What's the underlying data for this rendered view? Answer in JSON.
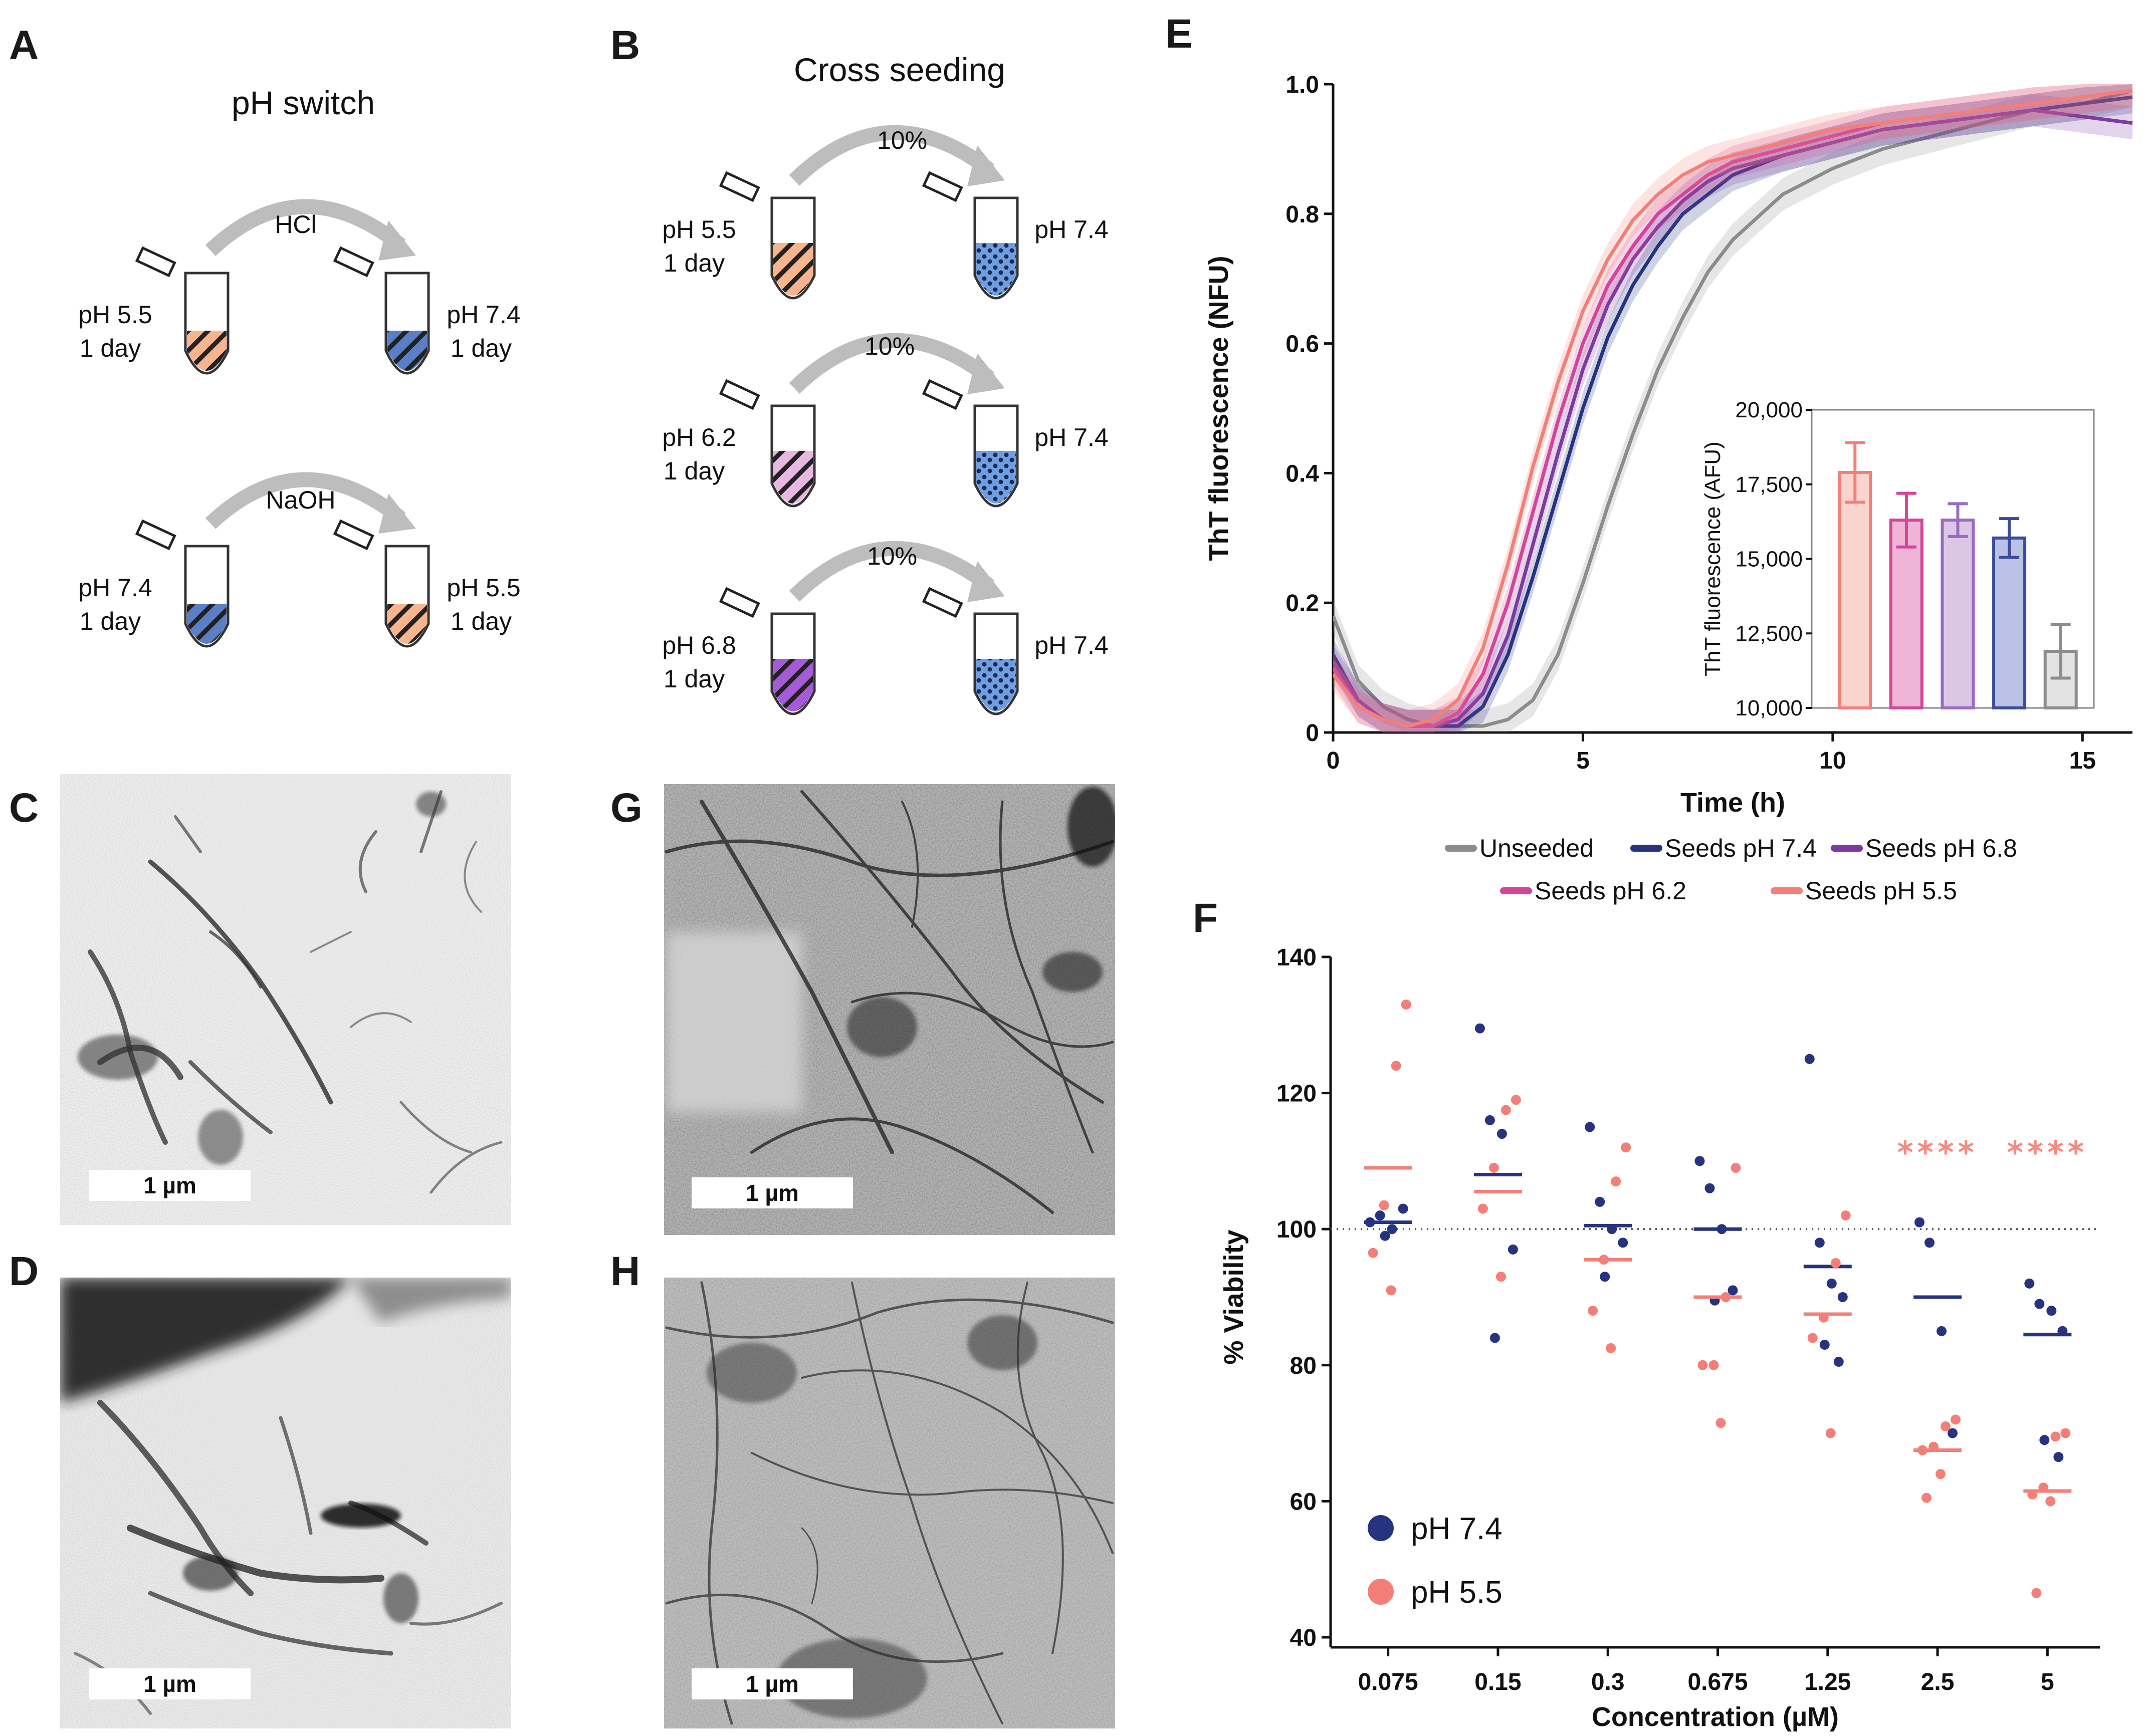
{
  "panels": {
    "a": {
      "letter": "A",
      "title": "pH switch",
      "rows": [
        {
          "reagent": "HCl",
          "left_ph": "pH 5.5",
          "left_time": "1 day",
          "right_ph": "pH 7.4",
          "right_time": "1 day",
          "left_color": "#f6b48f",
          "right_color": "#5b7fc4"
        },
        {
          "reagent": "NaOH",
          "left_ph": "pH 7.4",
          "left_time": "1 day",
          "right_ph": "pH 5.5",
          "right_time": "1 day",
          "left_color": "#5b7fc4",
          "right_color": "#f6b48f"
        }
      ]
    },
    "b": {
      "letter": "B",
      "title": "Cross seeding",
      "rows": [
        {
          "pct": "10%",
          "left_ph": "pH 5.5",
          "left_time": "1 day",
          "right_ph": "pH 7.4",
          "left_color": "#f6b48f"
        },
        {
          "pct": "10%",
          "left_ph": "pH 6.2",
          "left_time": "1 day",
          "right_ph": "pH 7.4",
          "left_color": "#e6b8e2"
        },
        {
          "pct": "10%",
          "left_ph": "pH 6.8",
          "left_time": "1 day",
          "right_ph": "pH 7.4",
          "left_color": "#a65bd6"
        }
      ],
      "seed_target_color": "#6f9fe0"
    },
    "c": {
      "letter": "C",
      "scale": "1 µm"
    },
    "d": {
      "letter": "D",
      "scale": "1 µm"
    },
    "g": {
      "letter": "G",
      "scale": "1 µm"
    },
    "h": {
      "letter": "H",
      "scale": "1 µm"
    },
    "e": {
      "letter": "E"
    },
    "f": {
      "letter": "F"
    }
  },
  "chart_data": [
    {
      "id": "E-main",
      "type": "line",
      "xlabel": "Time (h)",
      "ylabel": "ThT fluorescence (NFU)",
      "xlim": [
        0,
        16
      ],
      "ylim": [
        0,
        1.0
      ],
      "xticks": [
        0,
        5,
        10,
        15
      ],
      "yticks": [
        0,
        0.2,
        0.4,
        0.6,
        0.8,
        1.0
      ],
      "ytick_labels": [
        "0",
        "0.2",
        "0.4",
        "0.6",
        "0.8",
        "1.0"
      ],
      "series": [
        {
          "name": "Unseeded",
          "color": "#8c8c8c",
          "x": [
            0,
            0.5,
            1,
            1.5,
            2,
            2.5,
            3,
            3.5,
            4,
            4.5,
            5,
            5.5,
            6,
            6.5,
            7,
            7.5,
            8,
            9,
            10,
            11,
            12,
            13,
            14,
            15,
            16
          ],
          "y": [
            0.18,
            0.08,
            0.04,
            0.02,
            0.01,
            0.01,
            0.01,
            0.02,
            0.05,
            0.12,
            0.23,
            0.35,
            0.46,
            0.56,
            0.64,
            0.71,
            0.76,
            0.83,
            0.87,
            0.9,
            0.92,
            0.94,
            0.96,
            0.97,
            0.99
          ]
        },
        {
          "name": "Seeds pH 7.4",
          "color": "#26337f",
          "x": [
            0,
            0.5,
            1,
            1.5,
            2,
            2.5,
            3,
            3.5,
            4,
            4.5,
            5,
            5.5,
            6,
            6.5,
            7,
            7.5,
            8,
            9,
            10,
            11,
            12,
            13,
            14,
            15,
            16
          ],
          "y": [
            0.12,
            0.05,
            0.02,
            0.01,
            0.01,
            0.01,
            0.04,
            0.12,
            0.24,
            0.37,
            0.5,
            0.61,
            0.69,
            0.75,
            0.8,
            0.83,
            0.86,
            0.89,
            0.91,
            0.93,
            0.94,
            0.95,
            0.96,
            0.97,
            0.98
          ]
        },
        {
          "name": "Seeds pH 6.8",
          "color": "#7d3aa0",
          "x": [
            0,
            0.5,
            1,
            1.5,
            2,
            2.5,
            3,
            3.5,
            4,
            4.5,
            5,
            5.5,
            6,
            6.5,
            7,
            7.5,
            8,
            9,
            10,
            11,
            12,
            13,
            14,
            15,
            16
          ],
          "y": [
            0.11,
            0.05,
            0.02,
            0.01,
            0.01,
            0.02,
            0.06,
            0.15,
            0.29,
            0.43,
            0.56,
            0.66,
            0.73,
            0.78,
            0.82,
            0.85,
            0.87,
            0.89,
            0.91,
            0.93,
            0.94,
            0.95,
            0.96,
            0.95,
            0.94
          ]
        },
        {
          "name": "Seeds pH 6.2",
          "color": "#d3449b",
          "x": [
            0,
            0.5,
            1,
            1.5,
            2,
            2.5,
            3,
            3.5,
            4,
            4.5,
            5,
            5.5,
            6,
            6.5,
            7,
            7.5,
            8,
            9,
            10,
            11,
            12,
            13,
            14,
            15,
            16
          ],
          "y": [
            0.1,
            0.04,
            0.02,
            0.01,
            0.01,
            0.03,
            0.09,
            0.2,
            0.34,
            0.48,
            0.6,
            0.69,
            0.75,
            0.8,
            0.83,
            0.86,
            0.88,
            0.9,
            0.92,
            0.94,
            0.95,
            0.96,
            0.97,
            0.98,
            0.99
          ]
        },
        {
          "name": "Seeds pH 5.5",
          "color": "#f47f78",
          "x": [
            0,
            0.5,
            1,
            1.5,
            2,
            2.5,
            3,
            3.5,
            4,
            4.5,
            5,
            5.5,
            6,
            6.5,
            7,
            7.5,
            8,
            9,
            10,
            11,
            12,
            13,
            14,
            15,
            16
          ],
          "y": [
            0.09,
            0.04,
            0.02,
            0.01,
            0.02,
            0.05,
            0.13,
            0.26,
            0.41,
            0.54,
            0.65,
            0.73,
            0.79,
            0.83,
            0.86,
            0.88,
            0.89,
            0.91,
            0.93,
            0.94,
            0.95,
            0.96,
            0.97,
            0.98,
            0.99
          ]
        }
      ]
    },
    {
      "id": "E-inset",
      "type": "bar",
      "ylabel": "ThT fluorescence (AFU)",
      "ylim": [
        10000,
        20000
      ],
      "yticks": [
        10000,
        12500,
        15000,
        17500,
        20000
      ],
      "ytick_labels": [
        "10,000",
        "12,500",
        "15,000",
        "17,500",
        "20,000"
      ],
      "categories": [
        "Seeds pH 5.5",
        "Seeds pH 6.2",
        "Seeds pH 6.8",
        "Seeds pH 7.4",
        "Unseeded"
      ],
      "values": [
        17900,
        16300,
        16300,
        15700,
        11900
      ],
      "errors": [
        1000,
        900,
        550,
        650,
        900
      ],
      "colors": [
        "#f47f78",
        "#d3449b",
        "#9b6bbf",
        "#3b4a9a",
        "#8c8c8c"
      ],
      "fills": [
        "#fbd4cf",
        "#efb5d6",
        "#dcc6e6",
        "#bac3e6",
        "#e3e3e3"
      ]
    },
    {
      "id": "E-legend",
      "type": "legend",
      "entries": [
        {
          "label": "Unseeded",
          "color": "#8c8c8c"
        },
        {
          "label": "Seeds pH 7.4",
          "color": "#26337f"
        },
        {
          "label": "Seeds pH 6.8",
          "color": "#7d3aa0"
        },
        {
          "label": "Seeds pH 6.2",
          "color": "#d3449b"
        },
        {
          "label": "Seeds pH 5.5",
          "color": "#f47f78"
        }
      ]
    },
    {
      "id": "F",
      "type": "scatter",
      "xlabel": "Concentration (µM)",
      "ylabel": "% Viability",
      "ylim": [
        40,
        140
      ],
      "yticks": [
        40,
        60,
        80,
        100,
        120,
        140
      ],
      "reference_line": 100,
      "categories": [
        "0.075",
        "0.15",
        "0.3",
        "0.675",
        "1.25",
        "2.5",
        "5"
      ],
      "series": [
        {
          "name": "pH 7.4",
          "color": "#26337f",
          "points": [
            [
              101,
              102,
              100,
              103,
              99
            ],
            [
              129.5,
              116,
              114,
              97,
              84
            ],
            [
              115,
              104,
              100,
              98,
              93
            ],
            [
              110,
              106,
              100,
              91,
              89.5
            ],
            [
              125,
              98,
              92,
              90,
              83,
              80.5
            ],
            [
              101,
              98,
              85,
              70
            ],
            [
              92,
              89,
              88,
              85,
              69,
              66.5
            ]
          ],
          "means": [
            101,
            108,
            100.5,
            100,
            94.5,
            90,
            84.5
          ]
        },
        {
          "name": "pH 5.5",
          "color": "#f47f78",
          "points": [
            [
              133,
              124,
              103.5,
              96.5,
              91
            ],
            [
              119,
              117.5,
              109,
              103,
              93
            ],
            [
              112,
              107,
              95.5,
              88,
              82.5
            ],
            [
              109,
              90,
              80,
              80,
              71.5
            ],
            [
              102,
              95,
              87,
              84,
              70
            ],
            [
              72,
              71,
              68,
              67.5,
              64,
              60.5
            ],
            [
              70,
              69.5,
              62,
              61,
              60,
              46.5
            ]
          ],
          "means": [
            109,
            105.5,
            95.5,
            90,
            87.5,
            67.5,
            61.5
          ]
        }
      ],
      "significance": [
        "",
        "",
        "",
        "",
        "",
        "****",
        "****"
      ],
      "legend": [
        {
          "label": "pH 7.4",
          "color": "#26337f"
        },
        {
          "label": "pH 5.5",
          "color": "#f47f78"
        }
      ]
    }
  ]
}
